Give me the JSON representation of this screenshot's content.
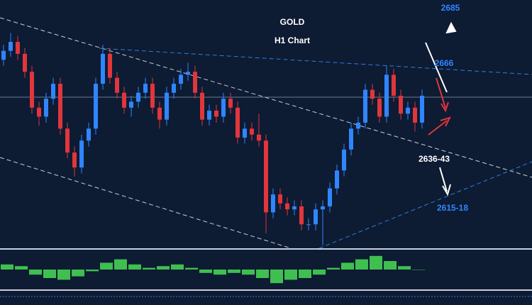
{
  "chart_data": {
    "type": "candlestick",
    "title": "GOLD",
    "subtitle": "H1 Chart",
    "annotations": [
      "2685",
      "2666",
      "2636-43",
      "2615-18"
    ],
    "ylim": [
      2607,
      2690
    ],
    "up_color": "#2f86ff",
    "down_color": "#e0363c",
    "open": [
      2670,
      2673,
      2676,
      2672,
      2666,
      2654,
      2651,
      2657,
      2662,
      2647,
      2639,
      2634,
      2643,
      2647,
      2662,
      2672,
      2664,
      2659,
      2654,
      2656,
      2659,
      2662,
      2654,
      2650,
      2659,
      2662,
      2665,
      2666,
      2659,
      2650,
      2653,
      2651,
      2657,
      2654,
      2644,
      2647,
      2645,
      2643,
      2619,
      2625,
      2622,
      2620,
      2621,
      2615,
      2615,
      2620,
      2621,
      2627,
      2633,
      2640,
      2647,
      2649,
      2660,
      2657,
      2651,
      2665,
      2658,
      2652,
      2654,
      2649
    ],
    "high": [
      2675,
      2679,
      2678,
      2674,
      2668,
      2656,
      2659,
      2664,
      2664,
      2649,
      2641,
      2645,
      2649,
      2664,
      2675,
      2674,
      2666,
      2661,
      2658,
      2661,
      2664,
      2664,
      2656,
      2661,
      2664,
      2667,
      2669,
      2668,
      2661,
      2655,
      2655,
      2659,
      2659,
      2656,
      2649,
      2649,
      2652,
      2645,
      2627,
      2627,
      2624,
      2623,
      2623,
      2617,
      2622,
      2623,
      2629,
      2635,
      2642,
      2649,
      2651,
      2662,
      2662,
      2659,
      2668,
      2667,
      2660,
      2656,
      2656,
      2660
    ],
    "low": [
      2668,
      2671,
      2670,
      2664,
      2652,
      2648,
      2649,
      2655,
      2645,
      2637,
      2631,
      2632,
      2641,
      2645,
      2660,
      2662,
      2657,
      2652,
      2651,
      2654,
      2657,
      2652,
      2647,
      2648,
      2657,
      2660,
      2663,
      2657,
      2648,
      2648,
      2649,
      2649,
      2652,
      2642,
      2642,
      2643,
      2641,
      2612,
      2617,
      2620,
      2618,
      2618,
      2613,
      2613,
      2613,
      2608,
      2619,
      2625,
      2631,
      2638,
      2645,
      2647,
      2655,
      2649,
      2649,
      2656,
      2650,
      2650,
      2646,
      2647
    ],
    "close": [
      2673,
      2676,
      2672,
      2666,
      2654,
      2651,
      2657,
      2662,
      2647,
      2639,
      2634,
      2643,
      2647,
      2662,
      2672,
      2664,
      2659,
      2654,
      2656,
      2659,
      2662,
      2654,
      2650,
      2659,
      2662,
      2665,
      2666,
      2659,
      2650,
      2653,
      2651,
      2657,
      2654,
      2644,
      2647,
      2645,
      2643,
      2619,
      2625,
      2622,
      2620,
      2621,
      2615,
      2615,
      2620,
      2621,
      2627,
      2633,
      2640,
      2647,
      2649,
      2660,
      2657,
      2651,
      2665,
      2658,
      2652,
      2654,
      2649,
      2658
    ],
    "indicator": {
      "color": "#3fbf4f",
      "ylim": [
        -1,
        1
      ],
      "values": [
        0.3,
        0.2,
        -0.3,
        -0.5,
        -0.6,
        -0.4,
        -0.1,
        0.4,
        0.6,
        0.3,
        0.1,
        0.2,
        0.3,
        0.1,
        -0.2,
        -0.3,
        -0.2,
        -0.3,
        -0.5,
        -0.8,
        -0.6,
        -0.5,
        -0.3,
        0.1,
        0.4,
        0.6,
        0.8,
        0.5,
        0.2,
        0.0
      ]
    }
  }
}
